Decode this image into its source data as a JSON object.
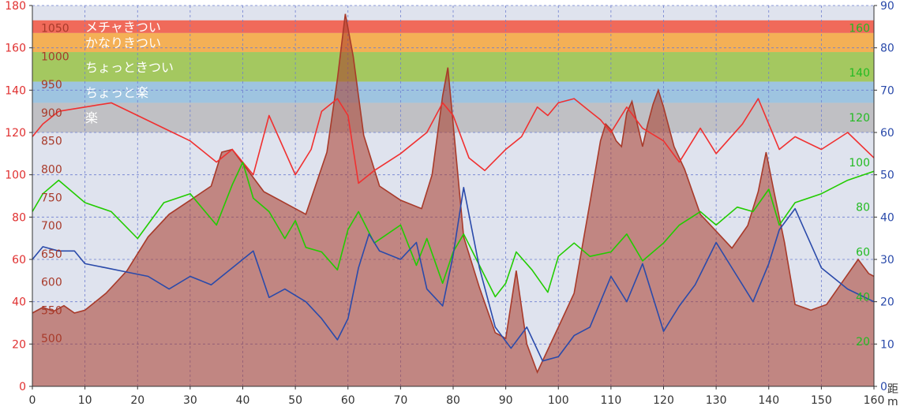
{
  "chart_data": {
    "type": "line",
    "title": "",
    "xlabel": "",
    "xlim": [
      0,
      160
    ],
    "x_ticks": [
      0,
      10,
      20,
      30,
      40,
      50,
      60,
      70,
      80,
      90,
      100,
      110,
      120,
      130,
      140,
      150,
      160
    ],
    "corner_glyphs": [
      "距",
      "m"
    ],
    "axes": {
      "left": {
        "ylim": [
          0,
          180
        ],
        "ticks": [
          0,
          20,
          40,
          60,
          80,
          100,
          120,
          140,
          160,
          180
        ],
        "color": "#e03030"
      },
      "elevation": {
        "ylim": [
          415,
          1090
        ],
        "ticks": [
          500,
          550,
          600,
          650,
          700,
          750,
          800,
          850,
          900,
          950,
          1000,
          1050
        ],
        "color": "#a83a2a"
      },
      "right_green": {
        "ylim": [
          0,
          170
        ],
        "ticks": [
          20,
          40,
          60,
          80,
          100,
          120,
          140,
          160
        ],
        "color": "#22bb22"
      },
      "right_blue": {
        "ylim": [
          0,
          90
        ],
        "ticks": [
          0,
          10,
          20,
          30,
          40,
          50,
          60,
          70,
          80,
          90
        ],
        "color": "#2a4aaa"
      }
    },
    "zones": [
      {
        "label": "メチャきつい",
        "y0": 167,
        "y1": 173,
        "color": "#f06a5a"
      },
      {
        "label": "かなりきつい",
        "y0": 158,
        "y1": 167,
        "color": "#f4b056"
      },
      {
        "label": "ちょっときつい",
        "y0": 144,
        "y1": 158,
        "color": "#a4c860"
      },
      {
        "label": "ちょっと楽",
        "y0": 134,
        "y1": 144,
        "color": "#9ec4e0"
      },
      {
        "label": "楽",
        "y0": 120,
        "y1": 134,
        "color": "#c0c0c4"
      }
    ],
    "series": [
      {
        "name": "",
        "axis": "elevation",
        "color": "#a83a2a",
        "x": [
          0,
          2,
          4,
          6,
          8,
          10,
          14,
          18,
          22,
          26,
          30,
          34,
          36,
          38,
          40,
          44,
          48,
          52,
          56,
          58,
          59.5,
          61,
          63,
          66,
          70,
          74,
          76,
          78,
          79,
          80,
          82,
          85,
          88,
          90,
          92,
          94,
          96,
          98,
          100,
          103,
          106,
          108,
          109,
          110,
          111,
          112,
          113,
          114,
          115,
          116,
          117,
          118,
          119,
          120,
          122,
          124,
          127,
          130,
          133,
          136,
          138,
          139.5,
          141,
          143,
          145,
          148,
          151,
          154,
          157,
          159,
          160
        ],
        "values": [
          545,
          555,
          548,
          558,
          545,
          550,
          580,
          620,
          680,
          720,
          745,
          770,
          830,
          835,
          810,
          760,
          740,
          720,
          830,
          960,
          1075,
          1000,
          860,
          770,
          745,
          730,
          790,
          930,
          980,
          880,
          680,
          590,
          510,
          500,
          620,
          490,
          440,
          480,
          520,
          580,
          740,
          850,
          880,
          870,
          850,
          840,
          900,
          920,
          880,
          840,
          880,
          915,
          940,
          910,
          840,
          800,
          720,
          690,
          660,
          700,
          760,
          830,
          760,
          670,
          560,
          550,
          560,
          600,
          640,
          615,
          610
        ]
      },
      {
        "name": "",
        "axis": "left",
        "color": "#f03030",
        "x": [
          0,
          2,
          5,
          10,
          15,
          20,
          25,
          30,
          35,
          38,
          42,
          45,
          50,
          53,
          55,
          58,
          60,
          62,
          65,
          70,
          75,
          78,
          80,
          83,
          86,
          90,
          93,
          96,
          98,
          100,
          103,
          106,
          108,
          110,
          113,
          116,
          120,
          123,
          127,
          130,
          135,
          138,
          140,
          142,
          145,
          150,
          155,
          160
        ],
        "values": [
          118,
          124,
          130,
          132,
          134,
          128,
          122,
          116,
          106,
          112,
          100,
          128,
          100,
          112,
          130,
          136,
          128,
          96,
          102,
          110,
          120,
          134,
          128,
          108,
          102,
          112,
          118,
          132,
          128,
          134,
          136,
          130,
          126,
          120,
          132,
          122,
          116,
          106,
          122,
          110,
          124,
          136,
          124,
          112,
          118,
          112,
          120,
          108
        ]
      },
      {
        "name": "",
        "axis": "right_green",
        "color": "#22cc00",
        "x": [
          0,
          2,
          5,
          10,
          15,
          20,
          25,
          30,
          35,
          38,
          40,
          42,
          45,
          48,
          50,
          52,
          55,
          58,
          60,
          62,
          65,
          70,
          73,
          75,
          78,
          80,
          82,
          85,
          88,
          90,
          92,
          95,
          98,
          100,
          103,
          106,
          110,
          113,
          116,
          120,
          123,
          127,
          130,
          134,
          137,
          140,
          142,
          145,
          150,
          155,
          160
        ],
        "values": [
          78,
          86,
          92,
          82,
          78,
          66,
          82,
          86,
          72,
          90,
          100,
          84,
          78,
          66,
          74,
          62,
          60,
          52,
          70,
          78,
          64,
          72,
          54,
          66,
          46,
          60,
          68,
          54,
          40,
          46,
          60,
          52,
          42,
          58,
          64,
          58,
          60,
          68,
          56,
          64,
          72,
          78,
          72,
          80,
          78,
          88,
          72,
          82,
          86,
          92,
          96
        ]
      },
      {
        "name": "",
        "axis": "right_blue",
        "color": "#2a4aaa",
        "x": [
          0,
          2,
          5,
          8,
          10,
          14,
          18,
          22,
          26,
          30,
          34,
          38,
          42,
          45,
          48,
          52,
          55,
          58,
          60,
          62,
          64,
          66,
          70,
          73,
          75,
          78,
          80,
          82,
          85,
          88,
          91,
          94,
          97,
          100,
          103,
          106,
          110,
          113,
          116,
          120,
          123,
          126,
          130,
          134,
          137,
          140,
          142,
          145,
          150,
          155,
          160
        ],
        "values": [
          30,
          33,
          32,
          32,
          29,
          28,
          27,
          26,
          23,
          26,
          24,
          28,
          32,
          21,
          23,
          20,
          16,
          11,
          16,
          28,
          36,
          32,
          30,
          34,
          23,
          19,
          31,
          47,
          28,
          14,
          9,
          14,
          6,
          7,
          12,
          14,
          26,
          20,
          29,
          13,
          19,
          24,
          34,
          26,
          20,
          29,
          37,
          42,
          28,
          23,
          20
        ]
      }
    ]
  }
}
